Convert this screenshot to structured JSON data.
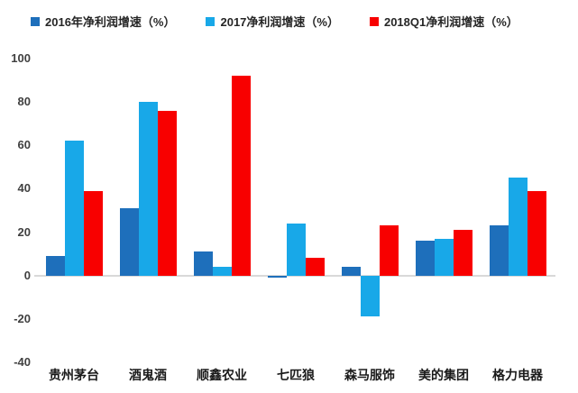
{
  "chart_data": {
    "type": "bar",
    "title": "",
    "categories": [
      "贵州茅台",
      "酒鬼酒",
      "顺鑫农业",
      "七匹狼",
      "森马服饰",
      "美的集团",
      "格力电器"
    ],
    "series": [
      {
        "name": "2016年净利润增速（%）",
        "color": "#1E6FBB",
        "values": [
          9,
          31,
          11,
          -1,
          4,
          16,
          23
        ]
      },
      {
        "name": "2017净利润增速（%）",
        "color": "#18A8E8",
        "values": [
          62,
          80,
          4,
          24,
          -19,
          17,
          45
        ]
      },
      {
        "name": "2018Q1净利润增速（%）",
        "color": "#F80000",
        "values": [
          39,
          76,
          92,
          8,
          23,
          21,
          39
        ]
      }
    ],
    "ylim": [
      -40,
      100
    ],
    "yticks": [
      100,
      80,
      60,
      40,
      20,
      0,
      -20,
      -40
    ],
    "grid": false,
    "legend_position": "top",
    "background_color": "#ffffff",
    "zero_line_color": "#d9d9d9",
    "tick_label_color": "#404040",
    "category_label_color": "#1a1a1a"
  }
}
